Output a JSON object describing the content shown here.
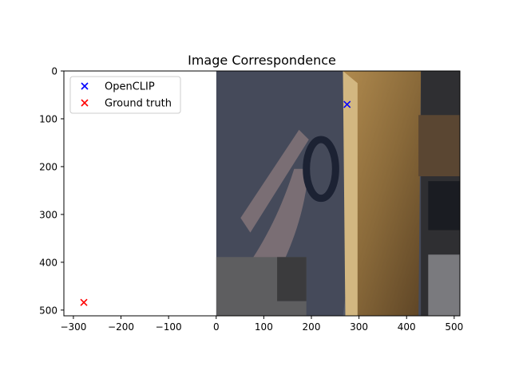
{
  "chart_data": {
    "type": "scatter",
    "title": "Image Correspondence",
    "xlabel": "",
    "ylabel": "",
    "xlim": [
      -320,
      512
    ],
    "ylim": [
      512,
      0
    ],
    "y_inverted": true,
    "xticks": [
      -300,
      -200,
      -100,
      0,
      100,
      200,
      300,
      400,
      500
    ],
    "yticks": [
      0,
      100,
      200,
      300,
      400,
      500
    ],
    "xtick_labels": [
      "−300",
      "−200",
      "−100",
      "0",
      "100",
      "200",
      "300",
      "400",
      "500"
    ],
    "ytick_labels": [
      "0",
      "100",
      "200",
      "300",
      "400",
      "500"
    ],
    "grid": false,
    "legend_position": "upper left",
    "background_image": {
      "extent_x": [
        0,
        512
      ],
      "extent_y": [
        0,
        512
      ],
      "description": "rotated indoor scene photo"
    },
    "series": [
      {
        "name": "OpenCLIP",
        "marker": "x",
        "color": "#0000ff",
        "points": [
          [
            275,
            70
          ]
        ]
      },
      {
        "name": "Ground truth",
        "marker": "x",
        "color": "#ff0000",
        "points": [
          [
            -278,
            484
          ]
        ]
      }
    ]
  }
}
